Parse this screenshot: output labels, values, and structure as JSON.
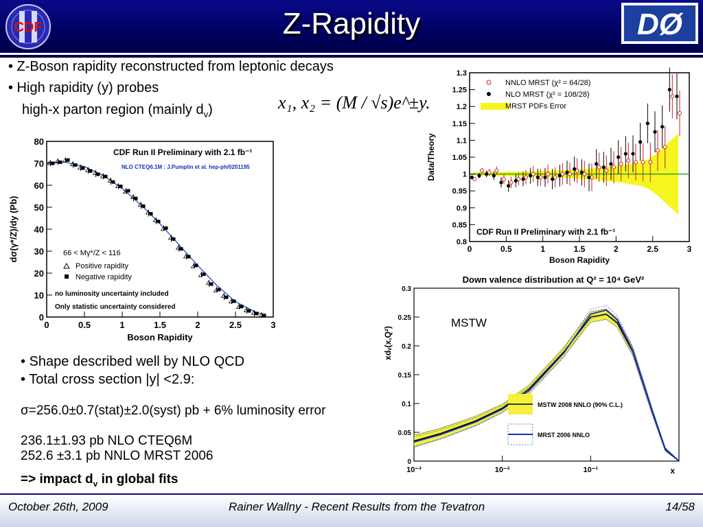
{
  "slide": {
    "title": "Z-Rapidity",
    "bullets": [
      "• Z-Boson rapidity reconstructed from leptonic decays",
      "• High rapidity (y) probes"
    ],
    "subline_prefix": "high-x parton region (mainly d",
    "subline_sub": "v",
    "subline_suffix": ")",
    "formula": "x₁, x₂ = (M / √s)e^±y.",
    "lower_bullets": [
      "• Shape described well by NLO QCD",
      "• Total cross section |y| <2.9:"
    ],
    "sigma_line": "σ=256.0±0.7(stat)±2.0(syst) pb + 6% luminosity error",
    "nlo_line": "236.1±1.93 pb NLO    CTEQ6M",
    "nnlo_line": "252.6 ±3.1  pb NNLO MRST 2006",
    "impact_prefix": "=> impact d",
    "impact_sub": "v",
    "impact_suffix": " in global fits",
    "footer": {
      "date": "October 26th, 2009",
      "center": "Rainer Wallny - Recent Results from the Tevatron",
      "page": "14/58"
    },
    "logos": {
      "left": "CDF",
      "right": "DØ"
    }
  },
  "chart_data": [
    {
      "type": "scatter",
      "title": "CDF Run II Preliminary with 2.1 fb⁻¹",
      "subtitle": "NLO CTEQ6.1M : J.Pumplin et al. hep-ph/0201195",
      "xlabel": "Boson Rapidity",
      "ylabel": "dσ(γ*/Z)/dy (Pb)",
      "xlim": [
        0,
        3
      ],
      "ylim": [
        0,
        80
      ],
      "xticks": [
        "0",
        "0.5",
        "1",
        "1.5",
        "2",
        "2.5",
        "3"
      ],
      "yticks": [
        "0",
        "10",
        "20",
        "30",
        "40",
        "50",
        "60",
        "70",
        "80"
      ],
      "legend": [
        "66 < Mγ*/Z < 116",
        "Positive rapidity",
        "Negative rapidity"
      ],
      "annotations": [
        "no luminosity uncertainty included",
        "Only statistic uncertainty considered"
      ],
      "x": [
        0.05,
        0.15,
        0.25,
        0.35,
        0.45,
        0.55,
        0.65,
        0.75,
        0.85,
        0.95,
        1.05,
        1.15,
        1.25,
        1.35,
        1.45,
        1.55,
        1.65,
        1.75,
        1.85,
        1.95,
        2.05,
        2.15,
        2.25,
        2.35,
        2.45,
        2.55,
        2.65,
        2.75,
        2.85
      ],
      "series": [
        {
          "name": "Positive rapidity",
          "values": [
            70.0,
            70.8,
            71.2,
            69.5,
            68.0,
            66.8,
            65.5,
            64.0,
            62.0,
            59.5,
            57.0,
            54.5,
            51.0,
            47.5,
            44.0,
            40.0,
            36.0,
            31.5,
            27.5,
            23.0,
            19.0,
            15.5,
            12.0,
            9.5,
            7.0,
            4.5,
            3.0,
            1.8,
            0.8
          ]
        },
        {
          "name": "Negative rapidity",
          "values": [
            70.0,
            70.5,
            71.5,
            69.2,
            67.8,
            66.5,
            65.0,
            64.0,
            61.5,
            59.5,
            57.5,
            54.0,
            50.5,
            47.0,
            43.5,
            40.5,
            35.5,
            31.0,
            27.5,
            23.5,
            19.5,
            15.0,
            12.5,
            9.0,
            7.2,
            4.8,
            2.8,
            1.6,
            0.7
          ]
        }
      ],
      "curve_x": [
        0,
        0.25,
        0.5,
        0.75,
        1.0,
        1.25,
        1.5,
        1.75,
        2.0,
        2.25,
        2.5,
        2.75,
        2.9
      ],
      "curve_y": [
        70.5,
        70.5,
        68.5,
        64.5,
        58.5,
        51.0,
        42.5,
        33.0,
        23.5,
        14.5,
        7.0,
        2.5,
        0.8
      ]
    },
    {
      "type": "scatter",
      "title": "CDF Run II Preliminary with 2.1 fb⁻¹",
      "xlabel": "Boson Rapidity",
      "ylabel": "Data/Theory",
      "xlim": [
        0,
        3
      ],
      "ylim": [
        0.8,
        1.3
      ],
      "xticks": [
        "0",
        "0.5",
        "1",
        "1.5",
        "2",
        "2.5",
        "3"
      ],
      "yticks": [
        "0.8",
        "0.85",
        "0.9",
        "0.95",
        "1",
        "1.05",
        "1.1",
        "1.15",
        "1.2",
        "1.25",
        "1.3"
      ],
      "legend": [
        "NNLO MRST (χ² = 64/28)",
        "NLO MRST (χ² = 108/28)",
        "MRST PDFs Error"
      ],
      "x": [
        0.05,
        0.15,
        0.25,
        0.35,
        0.45,
        0.55,
        0.65,
        0.75,
        0.85,
        0.95,
        1.05,
        1.15,
        1.25,
        1.35,
        1.45,
        1.55,
        1.65,
        1.75,
        1.85,
        1.95,
        2.05,
        2.15,
        2.25,
        2.35,
        2.45,
        2.55,
        2.65,
        2.75,
        2.85
      ],
      "series": [
        {
          "name": "NNLO MRST (χ² = 64/28)",
          "values": [
            0.985,
            1.01,
            1.005,
            1.01,
            0.985,
            0.975,
            0.985,
            0.99,
            1.0,
            0.99,
            1.0,
            0.99,
            1.0,
            1.0,
            1.01,
            1.0,
            0.99,
            1.02,
            1.01,
            1.02,
            1.03,
            1.04,
            1.035,
            1.035,
            1.035,
            1.07,
            1.08,
            1.23,
            1.18
          ]
        },
        {
          "name": "NLO MRST (χ² = 108/28)",
          "values": [
            0.99,
            0.995,
            1.0,
            0.995,
            0.975,
            0.965,
            0.98,
            0.985,
            0.995,
            0.99,
            0.99,
            0.985,
            0.995,
            1.005,
            1.015,
            1.005,
            0.99,
            1.03,
            1.02,
            1.03,
            1.05,
            1.06,
            1.06,
            1.095,
            1.15,
            1.125,
            1.14,
            1.25,
            1.23
          ]
        }
      ],
      "error_band_halfwidth": [
        0.005,
        0.005,
        0.005,
        0.006,
        0.006,
        0.007,
        0.007,
        0.008,
        0.008,
        0.009,
        0.009,
        0.01,
        0.011,
        0.012,
        0.013,
        0.014,
        0.016,
        0.018,
        0.02,
        0.022,
        0.025,
        0.028,
        0.032,
        0.036,
        0.045,
        0.06,
        0.08,
        0.1,
        0.12
      ]
    },
    {
      "type": "line",
      "title": "Down valence distribution at Q² = 10⁴ GeV²",
      "xlabel": "x",
      "ylabel": "xdᵥ(x,Q²)",
      "xscale": "log",
      "xlim": [
        0.001,
        1
      ],
      "ylim": [
        0,
        0.3
      ],
      "xticks": [
        "10⁻³",
        "10⁻²",
        "10⁻¹"
      ],
      "yticks": [
        "0",
        "0.05",
        "0.1",
        "0.15",
        "0.2",
        "0.25",
        "0.3"
      ],
      "label": "MSTW",
      "legend": [
        "MSTW 2008 NNLO (90% C.L.)",
        "MRST 2006 NNLO"
      ],
      "x": [
        0.001,
        0.002,
        0.005,
        0.01,
        0.02,
        0.05,
        0.1,
        0.15,
        0.2,
        0.3,
        0.5,
        0.7,
        1.0
      ],
      "series": [
        {
          "name": "MSTW 2008 NNLO (90% C.L.)",
          "values": [
            0.035,
            0.048,
            0.07,
            0.092,
            0.125,
            0.19,
            0.25,
            0.255,
            0.24,
            0.19,
            0.085,
            0.02,
            0.0
          ]
        },
        {
          "name": "MRST 2006 NNLO",
          "values": [
            0.033,
            0.046,
            0.068,
            0.09,
            0.122,
            0.188,
            0.255,
            0.262,
            0.245,
            0.192,
            0.086,
            0.021,
            0.0
          ]
        }
      ],
      "band_halfwidth": [
        0.01,
        0.009,
        0.008,
        0.007,
        0.007,
        0.008,
        0.009,
        0.009,
        0.008,
        0.007,
        0.005,
        0.003,
        0.001
      ]
    }
  ]
}
